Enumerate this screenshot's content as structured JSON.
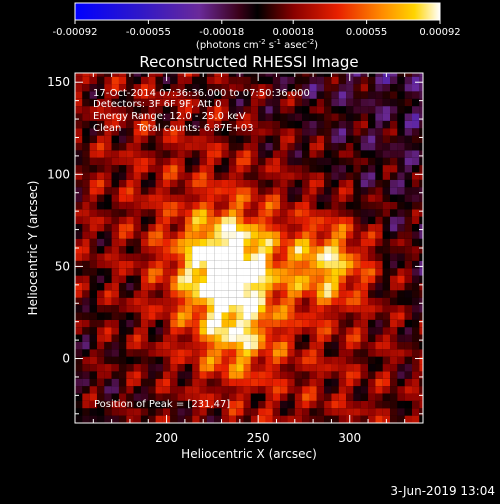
{
  "chart_data": {
    "type": "heatmap",
    "title": "Reconstructed RHESSI Image",
    "xlabel": "Heliocentric X (arcsec)",
    "ylabel": "Heliocentric Y (arcsec)",
    "xlim": [
      150,
      340
    ],
    "ylim": [
      -35,
      155
    ],
    "x_ticks": [
      200,
      250,
      300
    ],
    "y_ticks": [
      0,
      50,
      100,
      150
    ],
    "x_minor_step": 10,
    "y_minor_step": 10,
    "colorbar": {
      "range": [
        -0.00092,
        0.00092
      ],
      "tick_values": [
        -0.00092,
        -0.00055,
        -0.00018,
        0.00018,
        0.00055,
        0.00092
      ],
      "tick_labels": [
        "-0.00092",
        "-0.00055",
        "-0.00018",
        "0.00018",
        "0.00055",
        "0.00092"
      ],
      "unit_label": "(photons cm",
      "unit_sup1": "-2",
      "unit_mid": " s",
      "unit_sup2": "-1",
      "unit_mid2": " asec",
      "unit_sup3": "-2",
      "unit_end": ")"
    },
    "info_lines": [
      "17-Oct-2014 07:36:36.000 to 07:50:36.000",
      "Detectors: 3F 6F 9F, Att 0",
      "Energy Range: 12.0 - 25.0 keV",
      "Clean     Total counts: 6.87E+03"
    ],
    "peak_label": "Position of Peak = [231,47]",
    "peak_position": [
      231,
      47
    ],
    "sources": [
      {
        "x": 231,
        "y": 47,
        "amplitude": 0.00092
      },
      {
        "x": 287,
        "y": 50,
        "amplitude": 0.0006
      },
      {
        "x": 236,
        "y": 8,
        "amplitude": 0.00042
      }
    ],
    "footer_date": "3-Jun-2019 13:04"
  }
}
